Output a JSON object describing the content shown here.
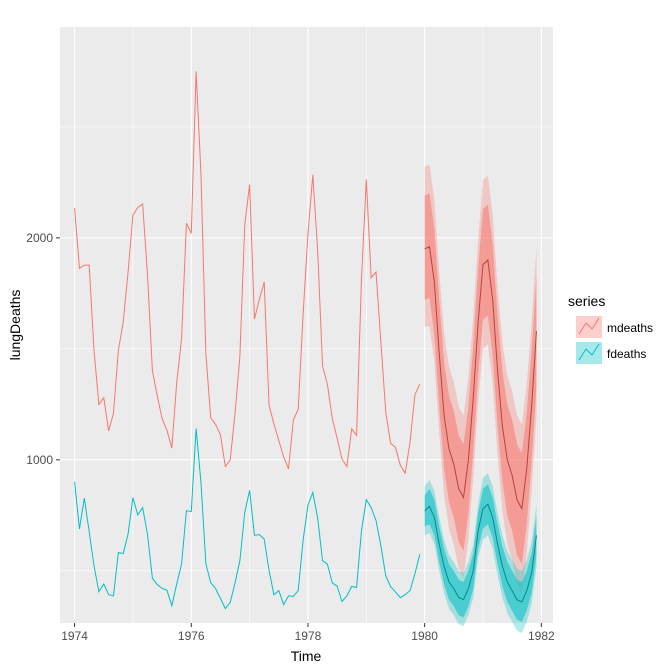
{
  "chart_data": {
    "type": "line",
    "xlabel": "Time",
    "ylabel": "lungDeaths",
    "xlim": [
      1973.75,
      1982.2
    ],
    "ylim": [
      265,
      2950
    ],
    "x_ticks": [
      1974,
      1976,
      1978,
      1980,
      1982
    ],
    "x_tick_labels": [
      "1974",
      "1976",
      "1978",
      "1980",
      "1982"
    ],
    "y_ticks": [
      1000,
      2000
    ],
    "y_tick_labels": [
      "1000",
      "2000"
    ],
    "grid": true,
    "legend": {
      "title": "series",
      "placement": "right"
    },
    "colors": {
      "panel_bg": "#ebebeb",
      "grid": "#ffffff",
      "mdeaths": "#f8766d",
      "fdeaths": "#00bfc4"
    },
    "series": [
      {
        "name": "mdeaths",
        "x_start": 1974,
        "step": 0.08333,
        "values": [
          2134,
          1863,
          1877,
          1877,
          1492,
          1249,
          1280,
          1131,
          1209,
          1492,
          1621,
          1846,
          2103,
          2137,
          2153,
          1833,
          1403,
          1288,
          1186,
          1133,
          1053,
          1347,
          1545,
          2066,
          2020,
          2750,
          2283,
          1479,
          1189,
          1160,
          1113,
          970,
          999,
          1208,
          1467,
          2059,
          2240,
          1634,
          1722,
          1801,
          1246,
          1162,
          1087,
          1013,
          959,
          1179,
          1229,
          1655,
          2019,
          2284,
          1942,
          1423,
          1340,
          1187,
          1098,
          1004,
          970,
          1140,
          1110,
          1812,
          2263,
          1820,
          1846,
          1531,
          1215,
          1075,
          1056,
          975,
          940,
          1081,
          1294,
          1341
        ]
      },
      {
        "name": "fdeaths",
        "x_start": 1974,
        "step": 0.08333,
        "values": [
          901,
          689,
          827,
          677,
          522,
          406,
          441,
          393,
          387,
          582,
          578,
          666,
          830,
          752,
          785,
          664,
          467,
          438,
          421,
          412,
          343,
          440,
          531,
          771,
          767,
          1141,
          896,
          532,
          447,
          420,
          376,
          330,
          357,
          445,
          546,
          764,
          862,
          660,
          663,
          643,
          502,
          392,
          411,
          348,
          387,
          385,
          411,
          638,
          796,
          853,
          737,
          546,
          530,
          446,
          431,
          362,
          387,
          430,
          425,
          679,
          821,
          785,
          727,
          612,
          478,
          429,
          405,
          379,
          393,
          411,
          487,
          574
        ]
      }
    ],
    "forecast": [
      {
        "name": "mdeaths",
        "x_start": 1980,
        "step": 0.08333,
        "mean": [
          1950,
          1960,
          1800,
          1480,
          1200,
          1050,
          980,
          870,
          830,
          1000,
          1280,
          1620,
          1880,
          1900,
          1720,
          1400,
          1150,
          1000,
          930,
          820,
          780,
          960,
          1240,
          1580
        ],
        "lo80": [
          1720,
          1730,
          1560,
          1240,
          960,
          810,
          740,
          630,
          590,
          760,
          1040,
          1380,
          1630,
          1650,
          1470,
          1150,
          900,
          750,
          680,
          570,
          530,
          710,
          990,
          1330
        ],
        "hi80": [
          2190,
          2200,
          2040,
          1720,
          1440,
          1290,
          1220,
          1110,
          1070,
          1240,
          1520,
          1860,
          2130,
          2150,
          1970,
          1650,
          1400,
          1250,
          1180,
          1070,
          1030,
          1210,
          1490,
          1830
        ],
        "lo95": [
          1600,
          1600,
          1440,
          1120,
          840,
          690,
          620,
          510,
          470,
          640,
          920,
          1260,
          1500,
          1520,
          1340,
          1020,
          770,
          620,
          550,
          440,
          400,
          580,
          860,
          1200
        ],
        "hi95": [
          2320,
          2330,
          2170,
          1850,
          1570,
          1420,
          1350,
          1240,
          1200,
          1370,
          1650,
          1990,
          2260,
          2280,
          2100,
          1780,
          1530,
          1380,
          1310,
          1200,
          1160,
          1340,
          1620,
          1960
        ]
      },
      {
        "name": "fdeaths",
        "x_start": 1980,
        "step": 0.08333,
        "mean": [
          770,
          790,
          740,
          620,
          520,
          450,
          420,
          380,
          370,
          420,
          500,
          680,
          780,
          800,
          740,
          620,
          520,
          450,
          410,
          370,
          360,
          410,
          490,
          660
        ],
        "lo80": [
          700,
          710,
          660,
          540,
          440,
          370,
          340,
          300,
          290,
          340,
          420,
          600,
          690,
          710,
          650,
          530,
          430,
          360,
          320,
          280,
          270,
          320,
          400,
          570
        ],
        "hi80": [
          840,
          870,
          820,
          700,
          600,
          530,
          500,
          460,
          450,
          500,
          580,
          760,
          870,
          890,
          830,
          710,
          610,
          540,
          500,
          460,
          450,
          500,
          580,
          750
        ],
        "lo95": [
          660,
          670,
          620,
          500,
          400,
          330,
          300,
          260,
          250,
          300,
          380,
          560,
          640,
          660,
          600,
          480,
          380,
          310,
          270,
          230,
          220,
          270,
          350,
          520
        ],
        "hi95": [
          880,
          910,
          860,
          740,
          640,
          570,
          540,
          500,
          490,
          540,
          620,
          800,
          920,
          940,
          880,
          760,
          660,
          590,
          550,
          510,
          500,
          550,
          630,
          800
        ]
      }
    ]
  },
  "legend_items": [
    {
      "label": "mdeaths"
    },
    {
      "label": "fdeaths"
    }
  ]
}
